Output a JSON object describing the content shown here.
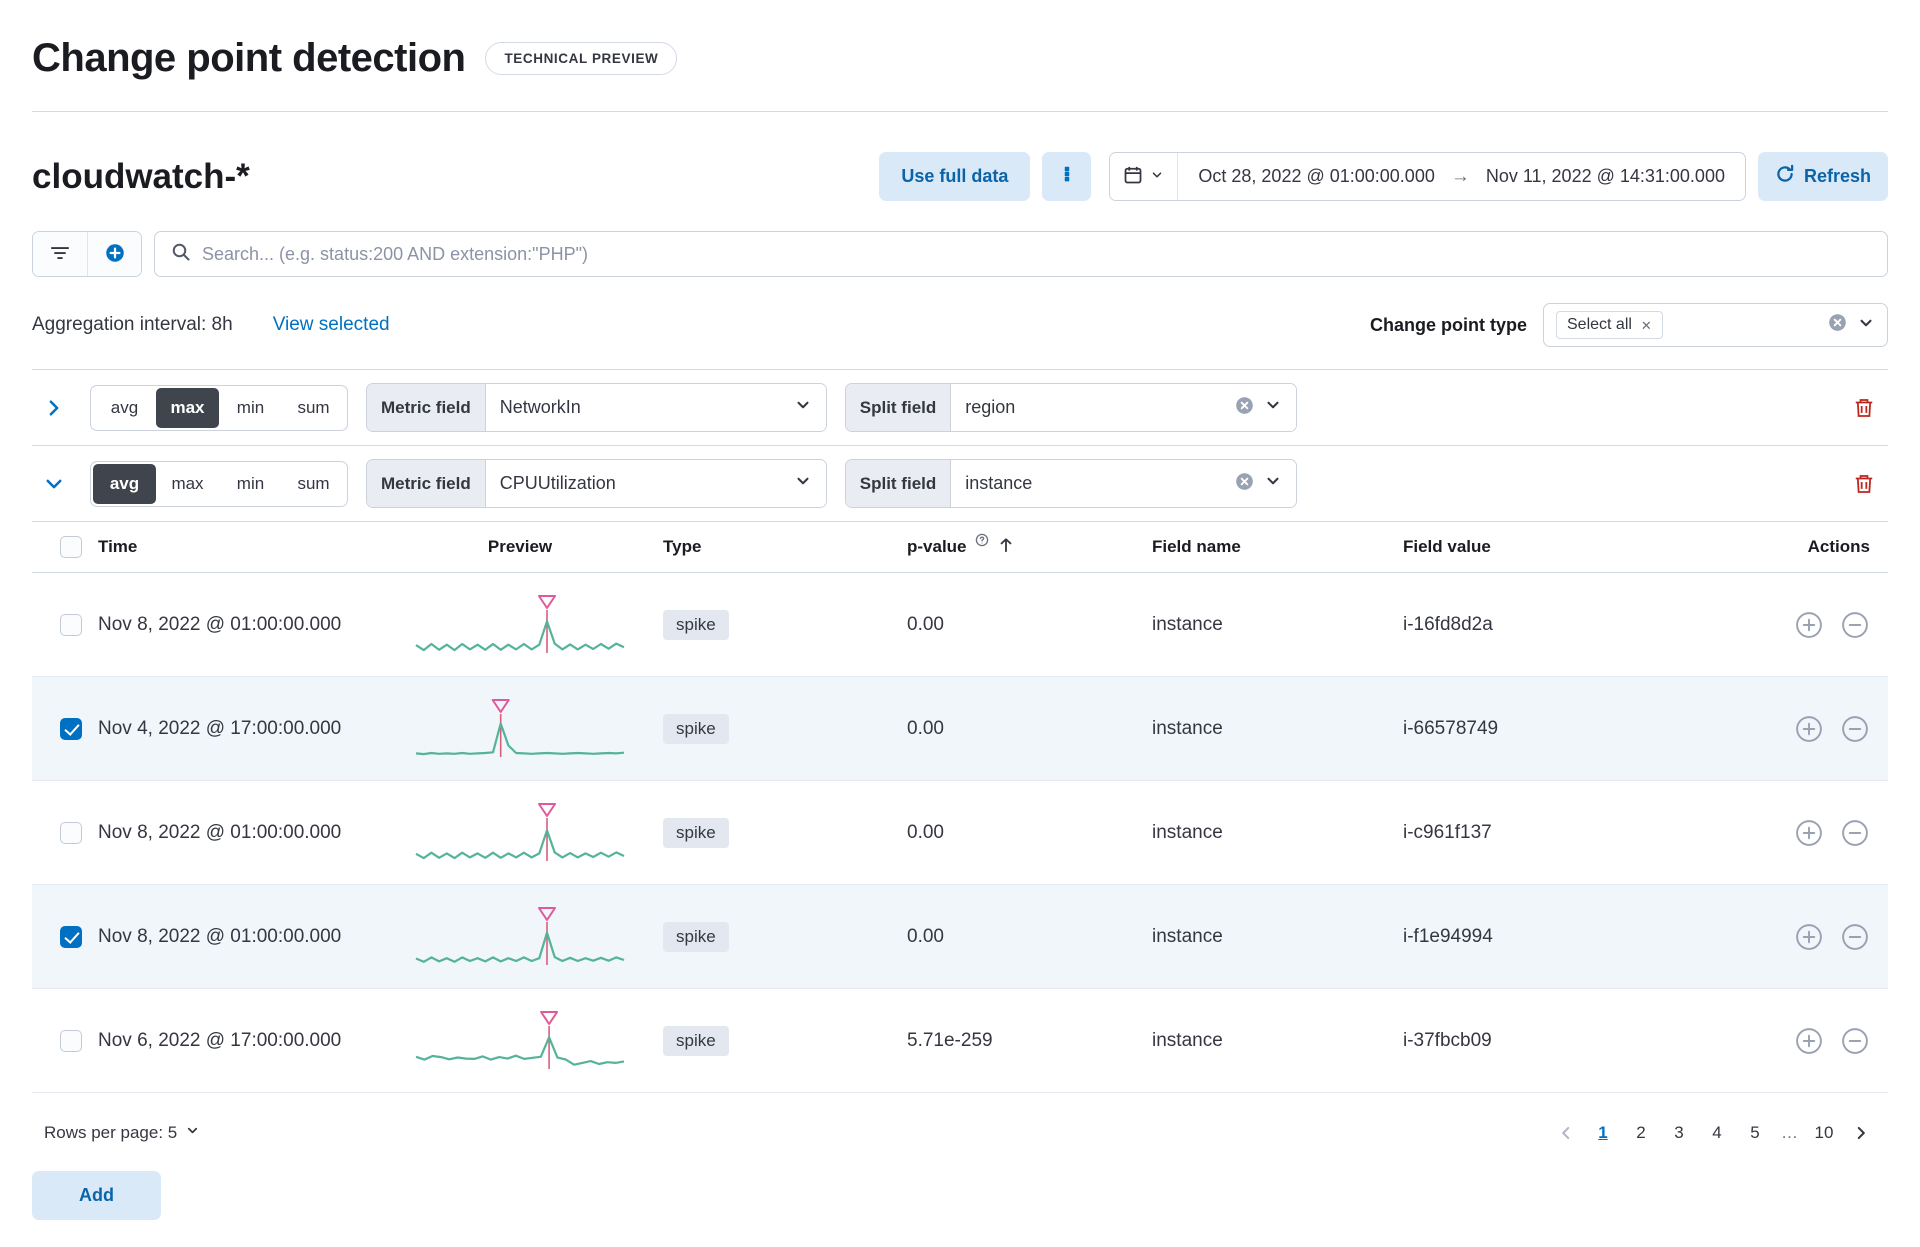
{
  "colors": {
    "primary": "#0071c2",
    "spark_line": "#54b399",
    "spike_line": "#d66079",
    "spike_marker": "#dd5a9c",
    "danger": "#bd271e"
  },
  "page": {
    "title": "Change point detection",
    "badge": "TECHNICAL PREVIEW"
  },
  "toolbar": {
    "index_title": "cloudwatch-*",
    "use_full_data_label": "Use full data",
    "date_start": "Oct 28, 2022 @ 01:00:00.000",
    "date_end": "Nov 11, 2022 @ 14:31:00.000",
    "refresh_label": "Refresh"
  },
  "search": {
    "placeholder": "Search... (e.g. status:200 AND extension:\"PHP\")"
  },
  "controls": {
    "aggregation_interval": "Aggregation interval: 8h",
    "view_selected": "View selected",
    "change_point_type_label": "Change point type",
    "selected_type": "Select all"
  },
  "configs": [
    {
      "expanded": false,
      "agg_options": [
        "avg",
        "max",
        "min",
        "sum"
      ],
      "selected_agg": "max",
      "metric_label": "Metric field",
      "metric_value": "NetworkIn",
      "split_label": "Split field",
      "split_value": "region"
    },
    {
      "expanded": true,
      "agg_options": [
        "avg",
        "max",
        "min",
        "sum"
      ],
      "selected_agg": "avg",
      "metric_label": "Metric field",
      "metric_value": "CPUUtilization",
      "split_label": "Split field",
      "split_value": "instance"
    }
  ],
  "table": {
    "headers": {
      "time": "Time",
      "preview": "Preview",
      "type": "Type",
      "pvalue": "p-value",
      "field_name": "Field name",
      "field_value": "Field value",
      "actions": "Actions"
    },
    "rows": [
      {
        "checked": false,
        "time": "Nov 8, 2022 @ 01:00:00.000",
        "type": "spike",
        "pvalue": "0.00",
        "field_name": "instance",
        "field_value": "i-16fd8d2a",
        "spark": {
          "points": [
            22,
            8,
            25,
            9,
            23,
            8,
            25,
            10,
            23,
            9,
            25,
            9,
            23,
            10,
            25,
            10,
            23,
            88,
            26,
            10,
            24,
            10,
            23,
            11,
            25,
            12,
            26,
            16
          ],
          "spike_index": 17
        }
      },
      {
        "checked": true,
        "time": "Nov 4, 2022 @ 17:00:00.000",
        "type": "spike",
        "pvalue": "0.00",
        "field_name": "instance",
        "field_value": "i-66578749",
        "spark": {
          "points": [
            10,
            8,
            11,
            9,
            10,
            9,
            11,
            9,
            10,
            11,
            13,
            93,
            32,
            11,
            10,
            9,
            10,
            11,
            10,
            9,
            10,
            11,
            10,
            9,
            10,
            11,
            10,
            12
          ],
          "spike_index": 11
        }
      },
      {
        "checked": false,
        "time": "Nov 8, 2022 @ 01:00:00.000",
        "type": "spike",
        "pvalue": "0.00",
        "field_name": "instance",
        "field_value": "i-c961f137",
        "spark": {
          "points": [
            20,
            8,
            23,
            9,
            21,
            8,
            23,
            10,
            21,
            9,
            23,
            9,
            21,
            10,
            23,
            10,
            21,
            85,
            24,
            10,
            22,
            10,
            21,
            11,
            23,
            12,
            24,
            14
          ],
          "spike_index": 17
        }
      },
      {
        "checked": true,
        "time": "Nov 8, 2022 @ 01:00:00.000",
        "type": "spike",
        "pvalue": "0.00",
        "field_name": "instance",
        "field_value": "i-f1e94994",
        "spark": {
          "points": [
            18,
            9,
            21,
            10,
            19,
            9,
            21,
            11,
            19,
            10,
            21,
            10,
            19,
            11,
            21,
            11,
            19,
            90,
            22,
            11,
            20,
            11,
            19,
            12,
            20,
            12,
            21,
            14
          ],
          "spike_index": 17
        }
      },
      {
        "checked": false,
        "time": "Nov 6, 2022 @ 17:00:00.000",
        "type": "spike",
        "pvalue": "5.71e-259",
        "field_name": "instance",
        "field_value": "i-37fbcb09",
        "spark": {
          "points": [
            34,
            26,
            36,
            33,
            27,
            32,
            29,
            28,
            35,
            26,
            33,
            29,
            37,
            28,
            31,
            34,
            88,
            32,
            26,
            12,
            17,
            22,
            14,
            19,
            17,
            21
          ],
          "spike_index": 16
        }
      }
    ]
  },
  "footer": {
    "rows_per_page": "Rows per page: 5",
    "pages": [
      "1",
      "2",
      "3",
      "4",
      "5",
      "…",
      "10"
    ],
    "active_page": "1"
  },
  "add_label": "Add"
}
